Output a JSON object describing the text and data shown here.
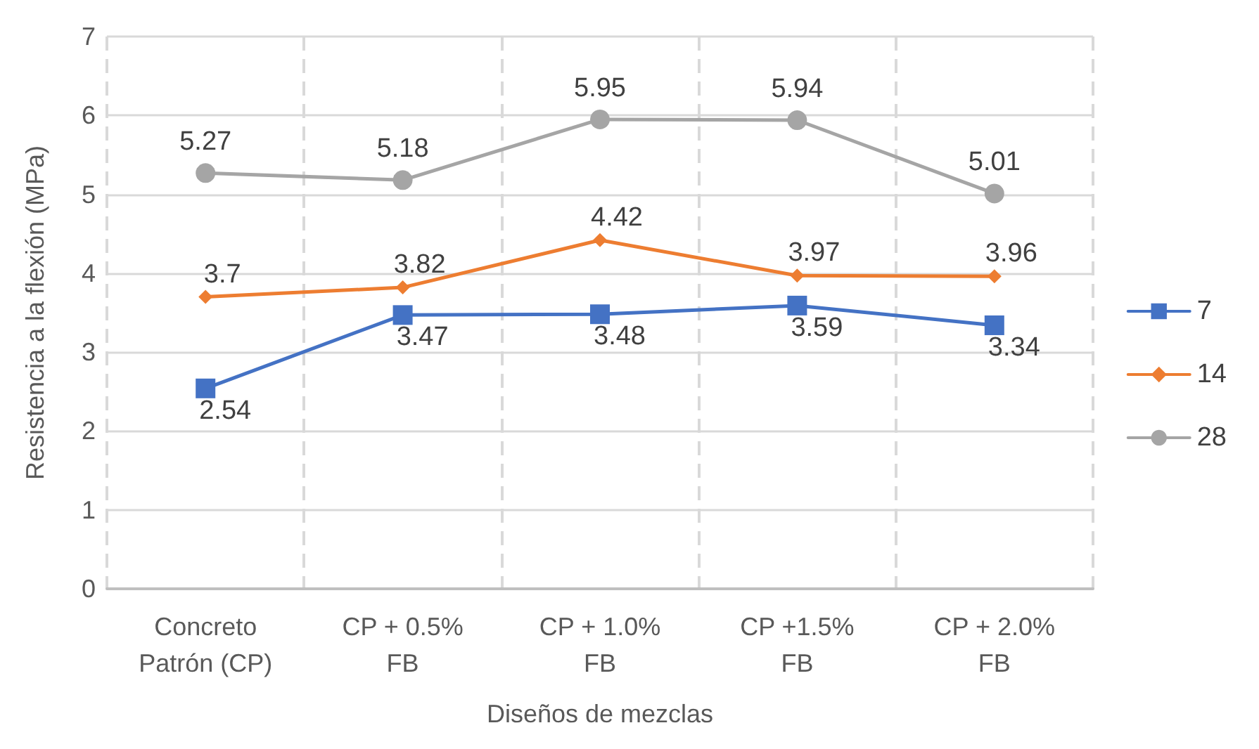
{
  "chart_data": {
    "type": "line",
    "xlabel": "Diseños de mezclas",
    "ylabel": "Resistencia a la flexión (MPa)",
    "categories": [
      "Concreto\nPatrón (CP)",
      "CP + 0.5%\nFB",
      "CP + 1.0%\nFB",
      "CP +1.5%\nFB",
      "CP + 2.0%\nFB"
    ],
    "series": [
      {
        "name": "7",
        "color": "#4472c4",
        "marker": "square",
        "values": [
          2.54,
          3.47,
          3.48,
          3.59,
          3.34
        ]
      },
      {
        "name": "14",
        "color": "#ed7d31",
        "marker": "diamond",
        "values": [
          3.7,
          3.82,
          4.42,
          3.97,
          3.96
        ]
      },
      {
        "name": "28",
        "color": "#a5a5a5",
        "marker": "circle",
        "values": [
          5.27,
          5.18,
          5.95,
          5.94,
          5.01
        ]
      }
    ],
    "ylim": [
      0,
      7
    ],
    "yticks": [
      0,
      1,
      2,
      3,
      4,
      5,
      6,
      7
    ],
    "grid": true,
    "legend": "right",
    "data_labels": true
  }
}
